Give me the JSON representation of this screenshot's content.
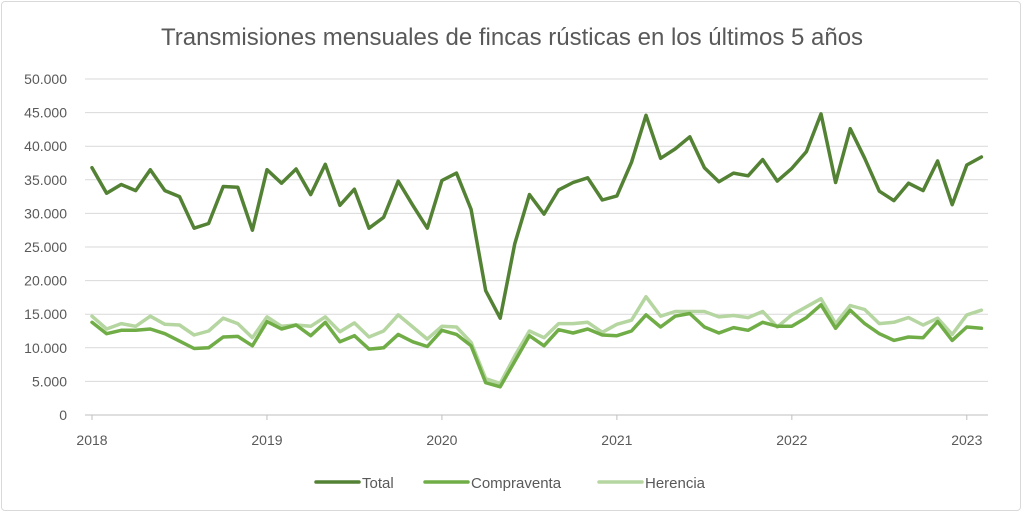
{
  "chart_data": {
    "type": "line",
    "title": "Transmisiones mensuales de fincas rústicas en los últimos 5 años",
    "xlabel": "",
    "ylabel": "",
    "ylim": [
      0,
      50000
    ],
    "y_ticks": [
      "0",
      "5.000",
      "10.000",
      "15.000",
      "20.000",
      "25.000",
      "30.000",
      "35.000",
      "40.000",
      "45.000",
      "50.000"
    ],
    "y_tick_values": [
      0,
      5000,
      10000,
      15000,
      20000,
      25000,
      30000,
      35000,
      40000,
      45000,
      50000
    ],
    "x_ticks": [
      "2018",
      "2019",
      "2020",
      "2021",
      "2022",
      "2023"
    ],
    "x_start": "2018-01",
    "x_end": "2023-02",
    "grid": true,
    "legend": "bottom",
    "series": [
      {
        "name": "Total",
        "color": "#548235",
        "values": [
          36800,
          33000,
          34300,
          33400,
          36500,
          33400,
          32500,
          27800,
          28500,
          34000,
          33900,
          27500,
          36500,
          34500,
          36600,
          32800,
          37300,
          31200,
          33600,
          27800,
          29400,
          34800,
          31200,
          27800,
          34900,
          36000,
          30600,
          18500,
          14400,
          25500,
          32800,
          29900,
          33500,
          34600,
          35300,
          32000,
          32600,
          37600,
          44600,
          38200,
          39600,
          41400,
          36800,
          34700,
          36000,
          35600,
          38000,
          34800,
          36700,
          39200,
          44800,
          34600,
          42600,
          38200,
          33300,
          31900,
          34500,
          33400,
          37800,
          31300,
          37200,
          38400
        ]
      },
      {
        "name": "Compraventa",
        "color": "#70AD47",
        "values": [
          13800,
          12100,
          12600,
          12600,
          12800,
          12100,
          11000,
          9900,
          10000,
          11600,
          11700,
          10300,
          13900,
          12800,
          13400,
          11800,
          13800,
          10900,
          11800,
          9800,
          10000,
          12000,
          10900,
          10200,
          12600,
          12000,
          10300,
          4800,
          4200,
          8000,
          11800,
          10300,
          12700,
          12200,
          12800,
          11900,
          11800,
          12500,
          14900,
          13100,
          14700,
          15100,
          13100,
          12200,
          13000,
          12600,
          13800,
          13200,
          13200,
          14500,
          16400,
          12900,
          15600,
          13600,
          12100,
          11100,
          11600,
          11500,
          13900,
          11100,
          13100,
          12900
        ]
      },
      {
        "name": "Herencia",
        "color": "#B5D6A0",
        "values": [
          14700,
          12800,
          13600,
          13200,
          14700,
          13500,
          13400,
          11900,
          12500,
          14400,
          13600,
          11500,
          14600,
          13200,
          13400,
          13200,
          14600,
          12400,
          13700,
          11600,
          12500,
          14900,
          13100,
          11300,
          13200,
          13100,
          10800,
          5400,
          4700,
          8800,
          12500,
          11500,
          13600,
          13600,
          13800,
          12300,
          13500,
          14100,
          17600,
          14700,
          15400,
          15400,
          15400,
          14600,
          14800,
          14500,
          15400,
          13100,
          14900,
          16100,
          17300,
          13600,
          16300,
          15700,
          13600,
          13800,
          14500,
          13400,
          14400,
          12000,
          14900,
          15600
        ]
      }
    ]
  }
}
